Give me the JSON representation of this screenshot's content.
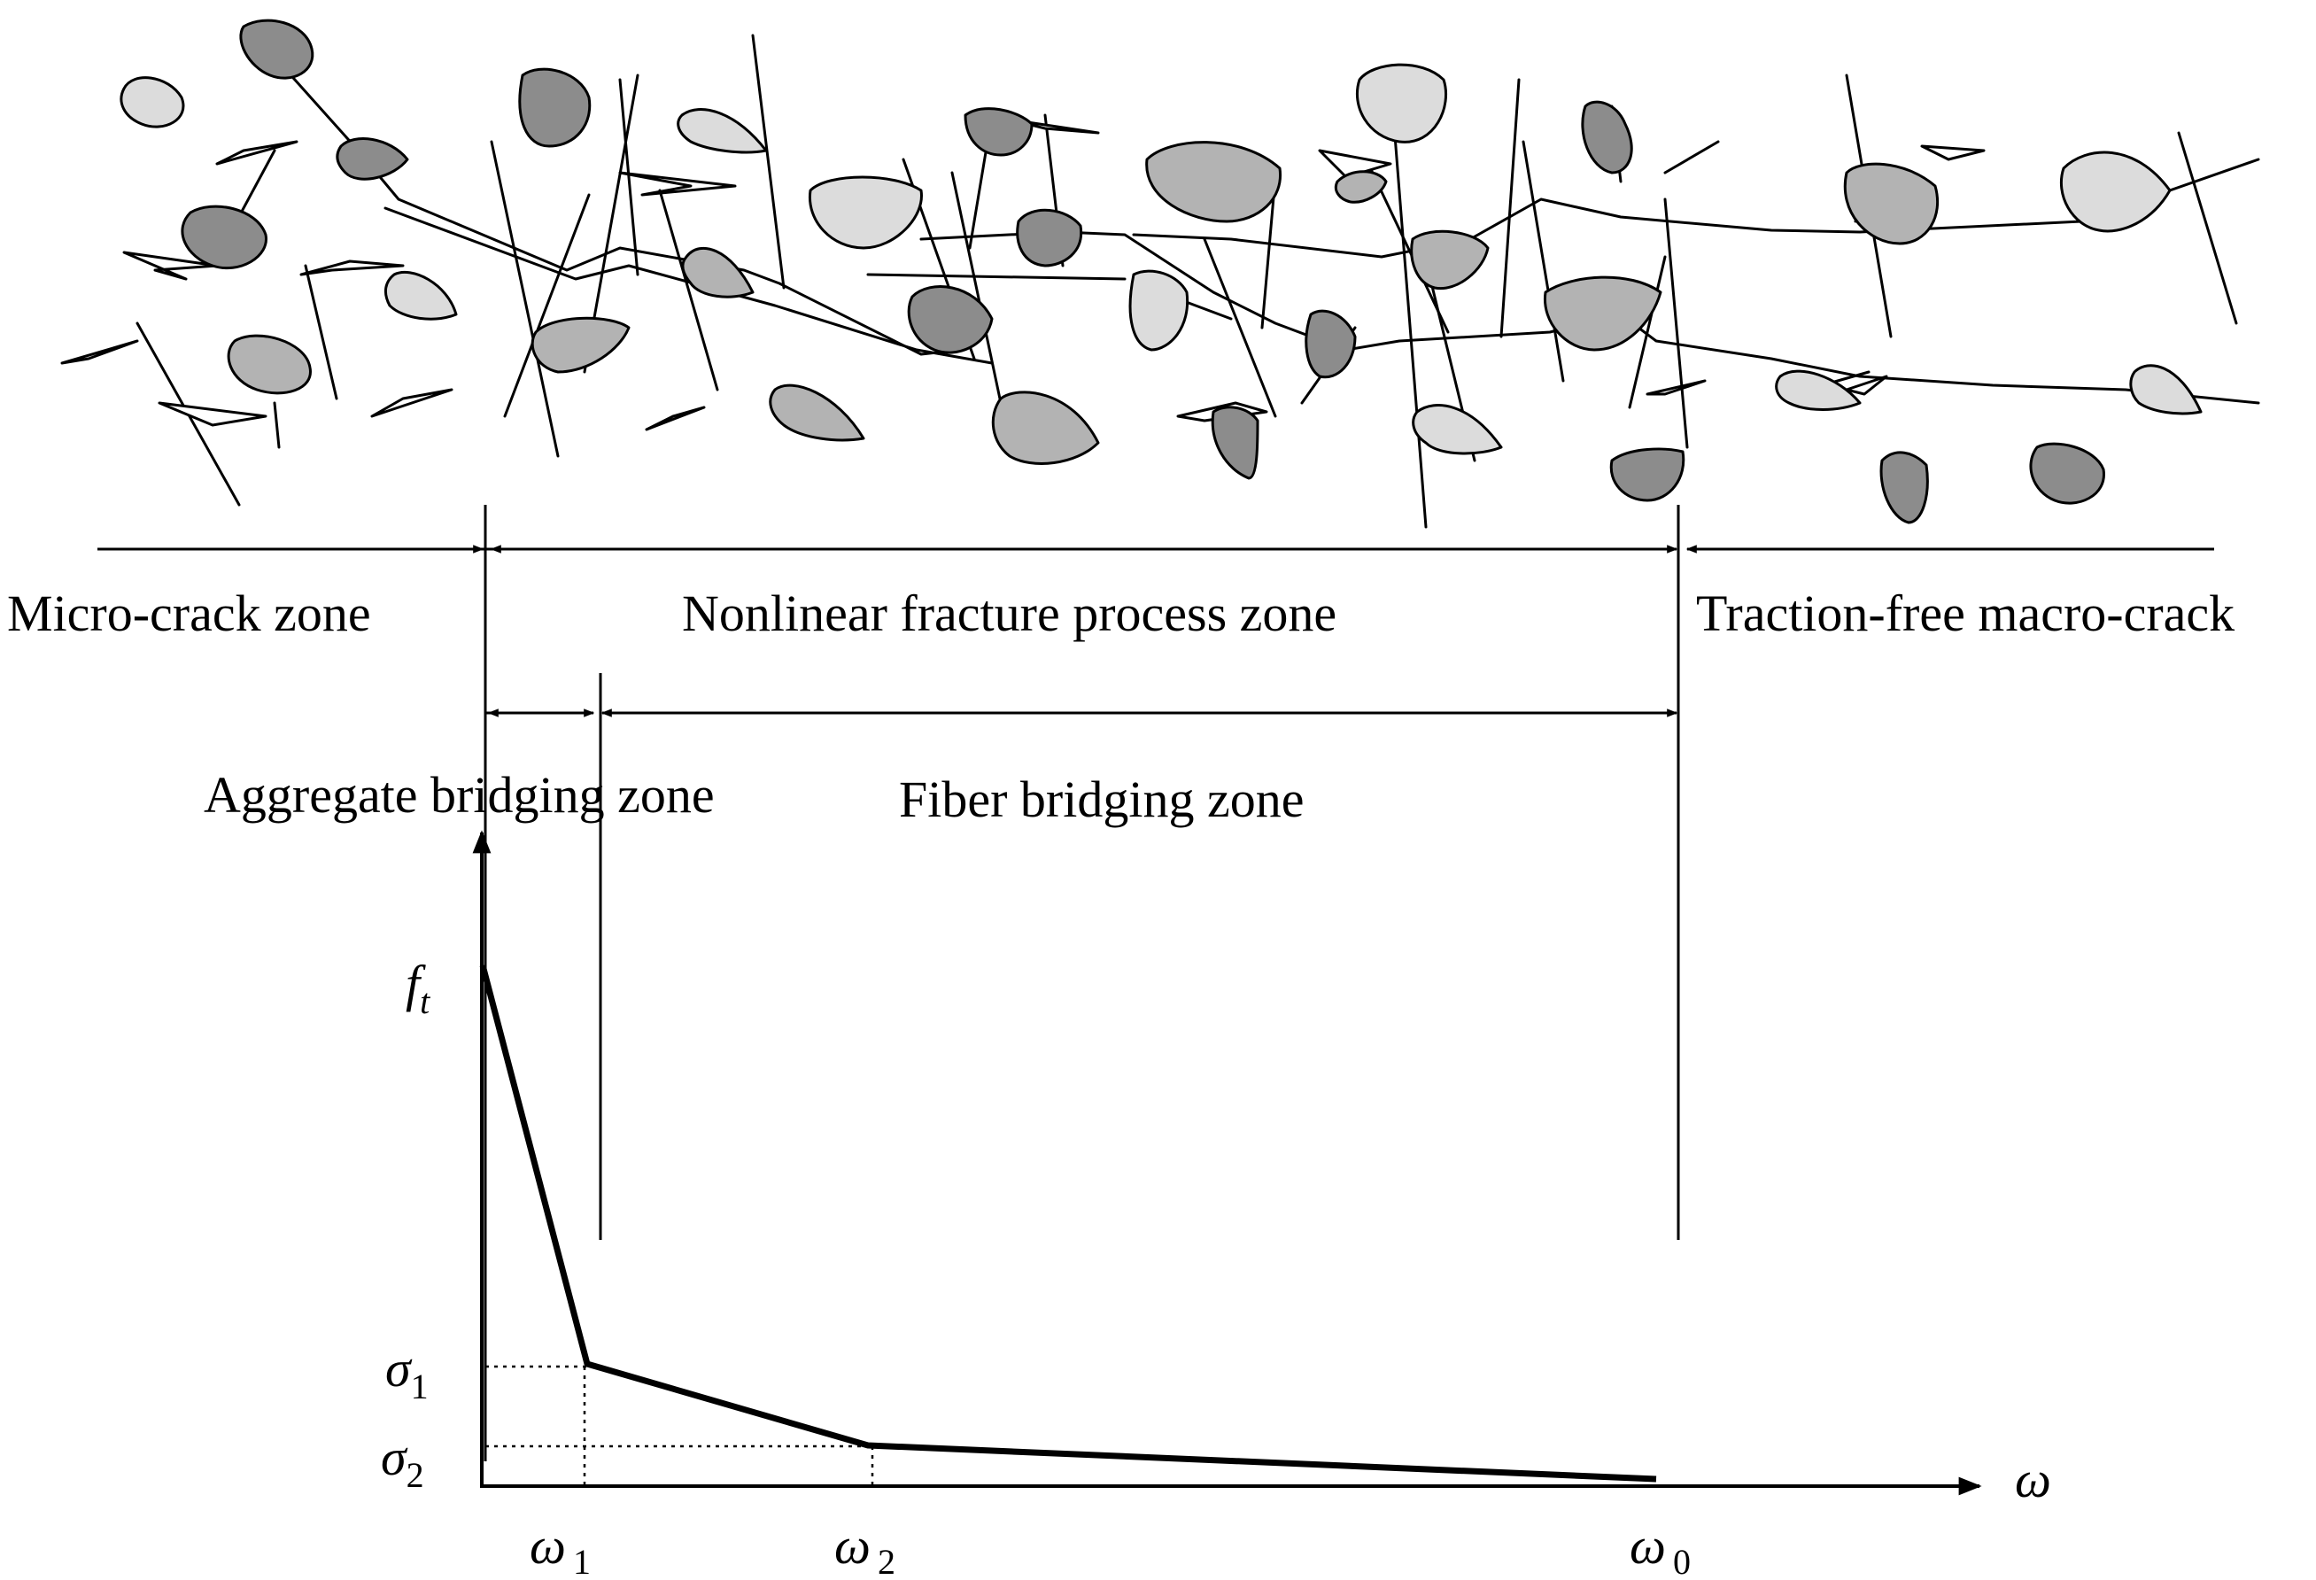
{
  "colors": {
    "background": "#ffffff",
    "line": "#000000",
    "aggregate_light": "#dcdcdc",
    "aggregate_mid": "#b3b3b3",
    "aggregate_dark": "#8c8c8c"
  },
  "zones": {
    "micro_crack": "Micro-crack zone",
    "nonlinear": "Nonlinear fracture process zone",
    "traction_free": "Traction-free macro-crack",
    "aggregate_bridging": "Aggregate bridging zone",
    "fiber_bridging": "Fiber bridging zone"
  },
  "curve": {
    "ft_main": "f",
    "ft_sub": "t",
    "sigma1_main": "σ",
    "sigma1_sub": "1",
    "sigma2_main": "σ",
    "sigma2_sub": "2",
    "w1_main": "ω",
    "w1_sub": "1",
    "w2_main": "ω",
    "w2_sub": "2",
    "w0_main": "ω",
    "w0_sub": "0",
    "w_axis": "ω"
  },
  "icons": {
    "aggregate": "aggregate-particle-icon",
    "fiber": "steel-fiber-icon"
  }
}
